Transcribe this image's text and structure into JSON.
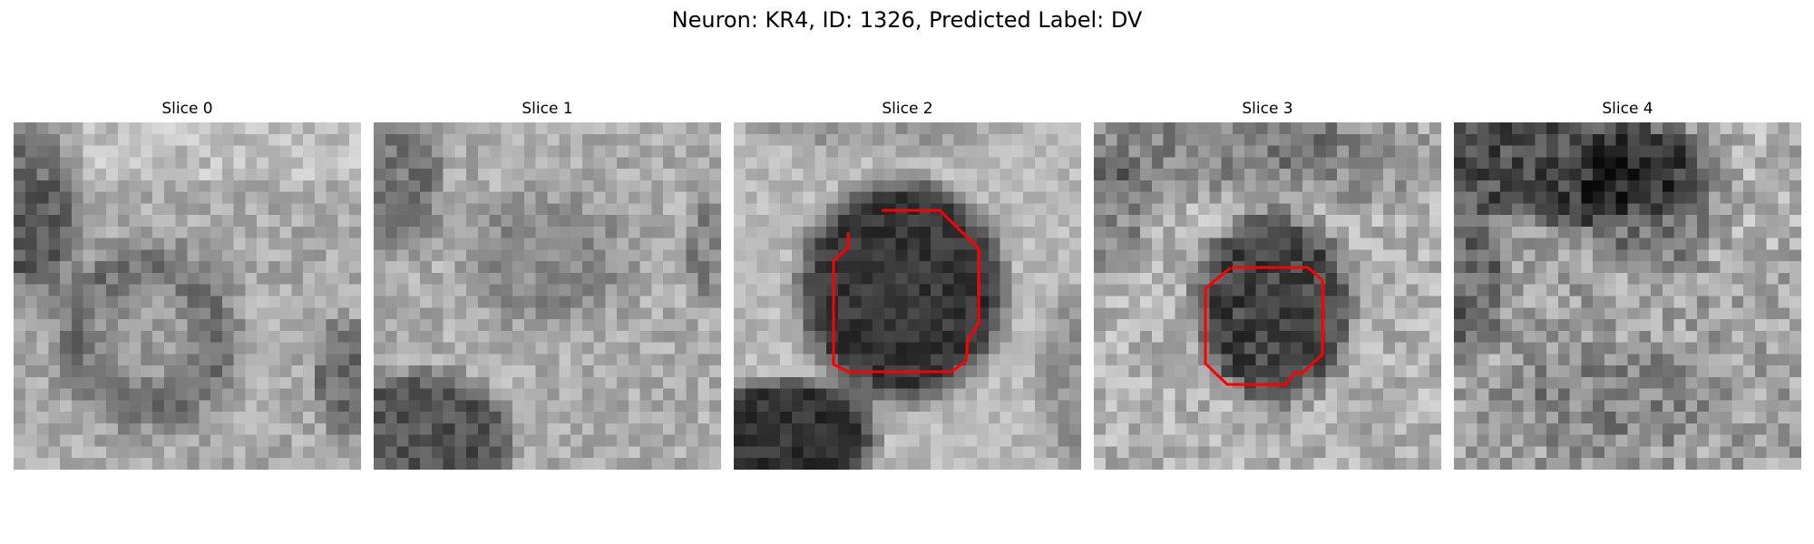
{
  "figure": {
    "title": "Neuron: KR4, ID: 1326, Predicted Label: DV"
  },
  "slices": [
    {
      "title": "Slice 0",
      "has_contour": false
    },
    {
      "title": "Slice 1",
      "has_contour": false
    },
    {
      "title": "Slice 2",
      "has_contour": true
    },
    {
      "title": "Slice 3",
      "has_contour": true
    },
    {
      "title": "Slice 4",
      "has_contour": false
    }
  ],
  "colors": {
    "contour": "#ff0000",
    "background": "#ffffff",
    "colormap": "gray"
  }
}
